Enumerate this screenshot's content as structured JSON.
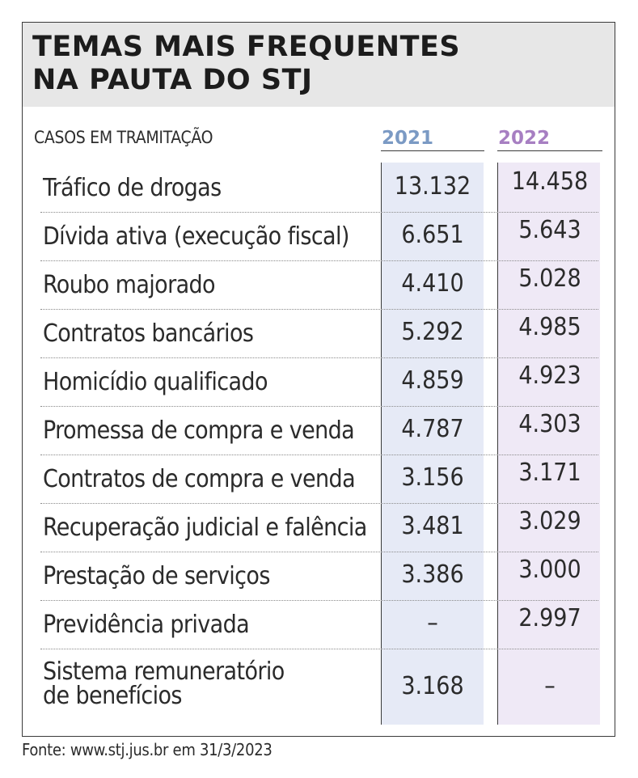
{
  "title_lines": [
    "TEMAS MAIS FREQUENTES",
    "NA PAUTA DO STJ"
  ],
  "subtitle": "CASOS EM TRAMITAÇÃO",
  "source": "Fonte: www.stj.jus.br em 31/3/2023",
  "colors": {
    "year_2021": "#7b9ac4",
    "year_2022": "#a77fc2",
    "col_2021_bg": "#e6eaf6",
    "col_2022_bg": "#efe9f6",
    "title_bg": "#e7e7e7"
  },
  "chart_data": {
    "type": "table",
    "columns": [
      "2021",
      "2022"
    ],
    "rows": [
      {
        "label": "Tráfico de drogas",
        "v2021": "13.132",
        "v2022": "14.458"
      },
      {
        "label": "Dívida ativa (execução fiscal)",
        "v2021": "6.651",
        "v2022": "5.643"
      },
      {
        "label": "Roubo majorado",
        "v2021": "4.410",
        "v2022": "5.028"
      },
      {
        "label": "Contratos bancários",
        "v2021": "5.292",
        "v2022": "4.985"
      },
      {
        "label": "Homicídio qualificado",
        "v2021": "4.859",
        "v2022": "4.923"
      },
      {
        "label": "Promessa de compra e venda",
        "v2021": "4.787",
        "v2022": "4.303"
      },
      {
        "label": "Contratos de compra e venda",
        "v2021": "3.156",
        "v2022": "3.171"
      },
      {
        "label": "Recuperação judicial e falência",
        "v2021": "3.481",
        "v2022": "3.029"
      },
      {
        "label": "Prestação de serviços",
        "v2021": "3.386",
        "v2022": "3.000"
      },
      {
        "label": "Previdência privada",
        "v2021": "–",
        "v2022": "2.997"
      },
      {
        "label_lines": [
          "Sistema remuneratório",
          "de benefícios"
        ],
        "v2021": "3.168",
        "v2022": "–"
      }
    ]
  }
}
